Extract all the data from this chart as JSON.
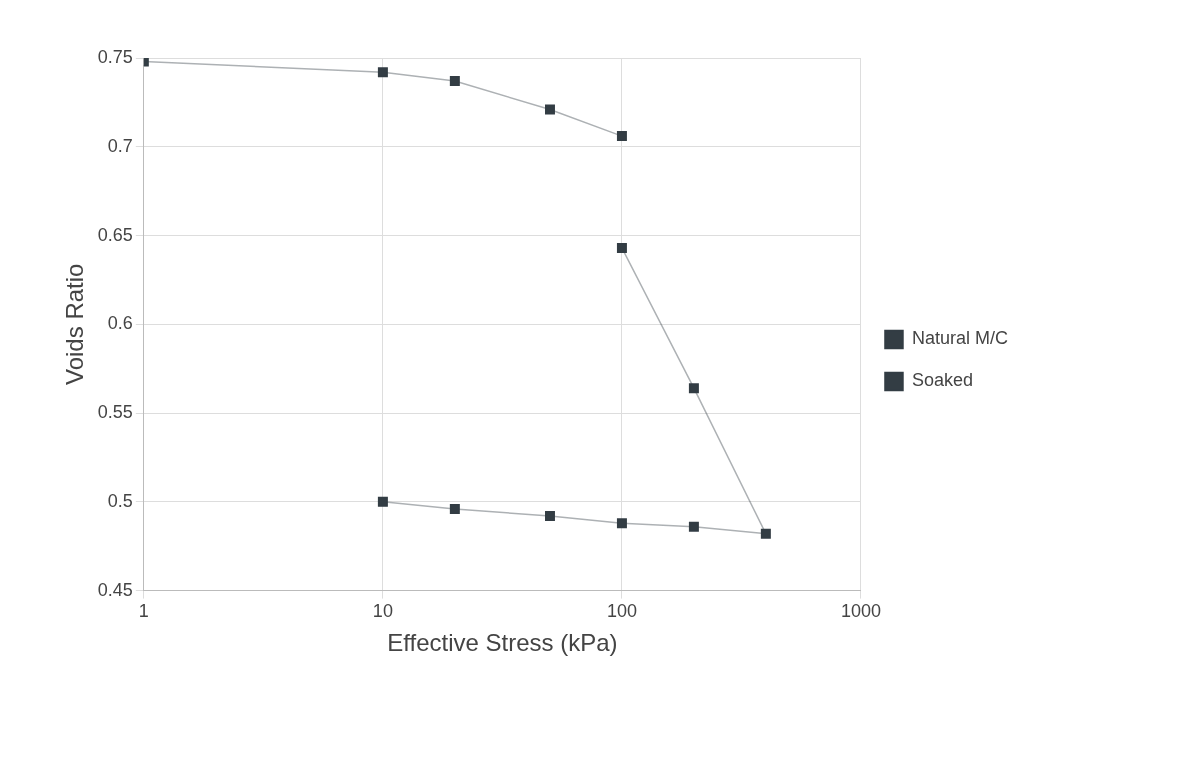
{
  "chart_data": {
    "type": "line",
    "xlabel": "Effective Stress (kPa)",
    "ylabel": "Voids Ratio",
    "log": "x",
    "xlim": [
      1,
      1000
    ],
    "xticks": [
      1,
      10,
      100,
      1000
    ],
    "ylim": [
      0.45,
      0.75
    ],
    "yticks": [
      0.45,
      0.5,
      0.55,
      0.6,
      0.65,
      0.7,
      0.75
    ],
    "grid": true,
    "legend": "right",
    "marker": "square",
    "series": [
      {
        "name": "Natural M/C",
        "color": "#333d44",
        "x": [
          1,
          10,
          20,
          50,
          100
        ],
        "values": [
          0.748,
          0.742,
          0.737,
          0.721,
          0.706
        ]
      },
      {
        "name": "Soaked",
        "color": "#333d44",
        "x": [
          100,
          200,
          400,
          200,
          100,
          50,
          20,
          10
        ],
        "values": [
          0.643,
          0.564,
          0.482,
          0.486,
          0.488,
          0.492,
          0.496,
          0.5
        ]
      }
    ]
  }
}
